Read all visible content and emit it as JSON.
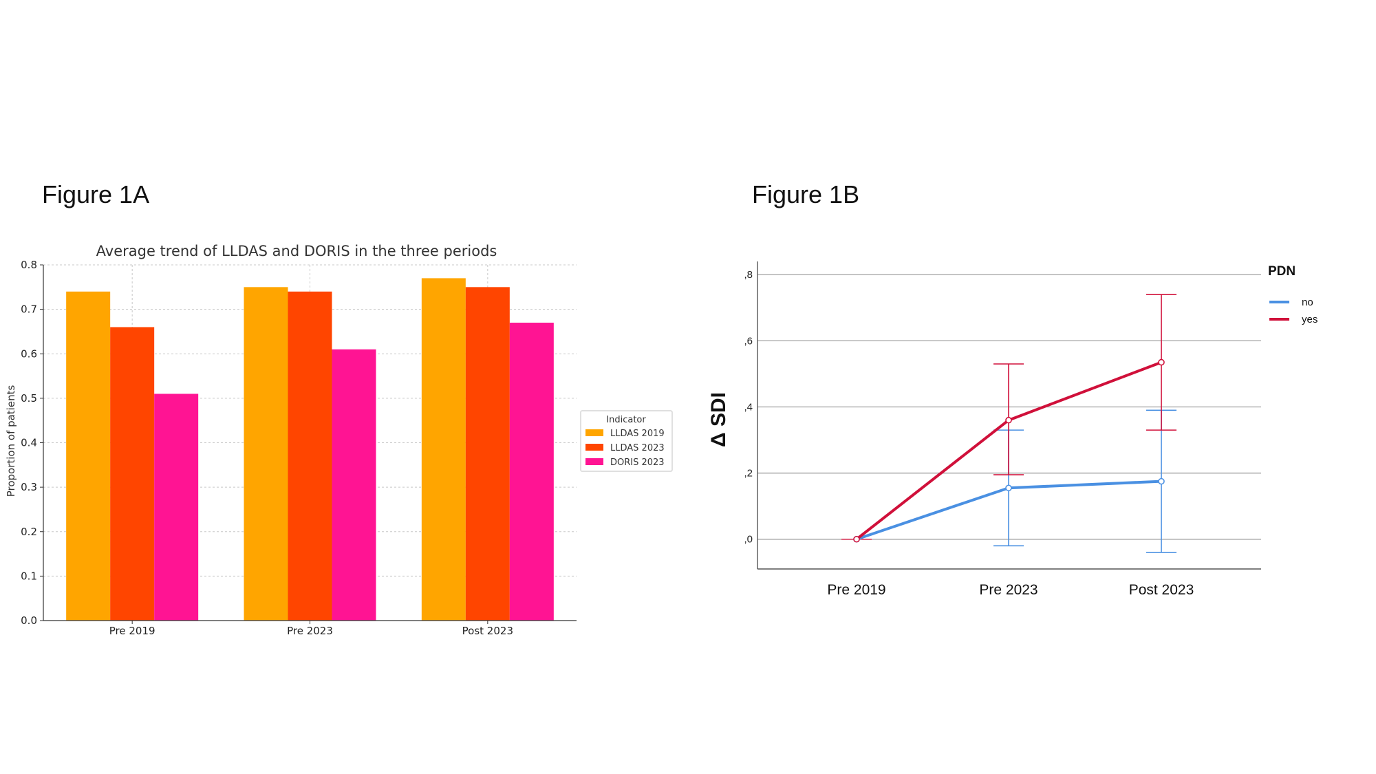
{
  "figure_titles": {
    "a": "Figure 1A",
    "b": "Figure 1B"
  },
  "colors": {
    "lldas2019": "#FFA500",
    "lldas2023": "#FF4500",
    "doris2023": "#FF1493",
    "no": "#4A90E2",
    "yes": "#D0103A"
  },
  "chart_data": [
    {
      "type": "bar",
      "title": "Average trend of LLDAS and DORIS in the three periods",
      "xlabel": "",
      "ylabel": "Proportion of patients",
      "categories": [
        "Pre 2019",
        "Pre 2023",
        "Post 2023"
      ],
      "series": [
        {
          "name": "LLDAS 2019",
          "values": [
            0.74,
            0.75,
            0.77
          ]
        },
        {
          "name": "LLDAS 2023",
          "values": [
            0.66,
            0.74,
            0.75
          ]
        },
        {
          "name": "DORIS 2023",
          "values": [
            0.51,
            0.61,
            0.67
          ]
        }
      ],
      "ylim": [
        0,
        0.8
      ],
      "yticks": [
        "0.0",
        "0.1",
        "0.2",
        "0.3",
        "0.4",
        "0.5",
        "0.6",
        "0.7",
        "0.8"
      ],
      "grid": true,
      "legend": {
        "title": "Indicator",
        "position": "center-right"
      }
    },
    {
      "type": "line",
      "title": "",
      "xlabel": "",
      "ylabel": "Δ SDI",
      "categories": [
        "Pre 2019",
        "Pre 2023",
        "Post 2023"
      ],
      "series": [
        {
          "name": "no",
          "values": [
            0.0,
            0.155,
            0.175
          ],
          "error_low": [
            0.0,
            -0.02,
            -0.04
          ],
          "error_high": [
            0.0,
            0.33,
            0.39
          ]
        },
        {
          "name": "yes",
          "values": [
            0.0,
            0.36,
            0.535
          ],
          "error_low": [
            0.0,
            0.195,
            0.33
          ],
          "error_high": [
            0.0,
            0.53,
            0.74
          ]
        }
      ],
      "ylim": [
        -0.09,
        0.84
      ],
      "yticks": [
        ",0",
        ",2",
        ",4",
        ",6",
        ",8"
      ],
      "ytick_values": [
        0,
        0.2,
        0.4,
        0.6,
        0.8
      ],
      "grid": true,
      "legend": {
        "title": "PDN",
        "position": "top-right"
      }
    }
  ]
}
